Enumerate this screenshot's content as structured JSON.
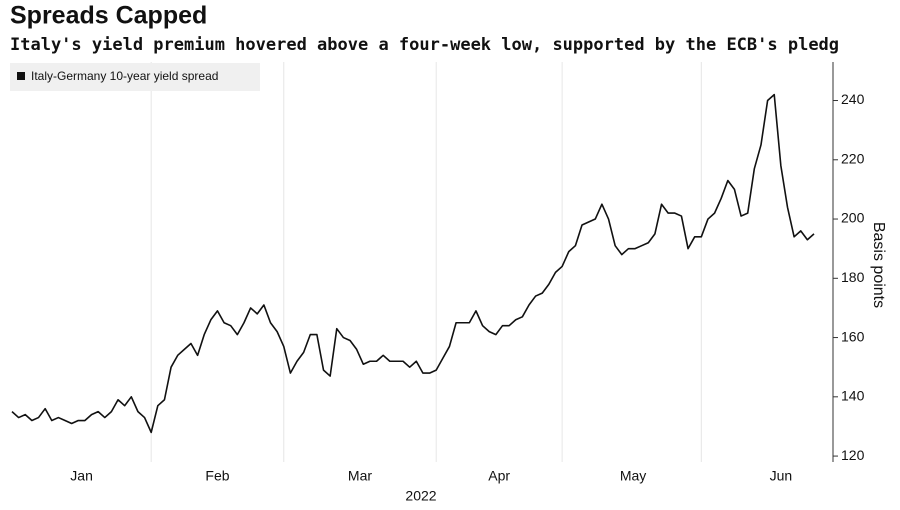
{
  "chart_data": {
    "type": "line",
    "title": "Spreads Capped",
    "subtitle": "Italy's yield premium hovered above a four-week low, supported by the ECB's pledg",
    "y_label": "Basis points",
    "x_label": "2022",
    "series": [
      {
        "name": "Italy-Germany 10-year yield spread",
        "color": "#111111",
        "values": [
          135,
          133,
          134,
          132,
          133,
          136,
          132,
          133,
          132,
          131,
          132,
          132,
          134,
          135,
          133,
          135,
          139,
          137,
          140,
          135,
          133,
          128,
          137,
          139,
          150,
          154,
          156,
          158,
          154,
          161,
          166,
          169,
          165,
          164,
          161,
          165,
          170,
          168,
          171,
          165,
          162,
          157,
          148,
          152,
          155,
          161,
          161,
          149,
          147,
          163,
          160,
          159,
          156,
          151,
          152,
          152,
          154,
          152,
          152,
          152,
          150,
          152,
          148,
          148,
          149,
          153,
          157,
          165,
          165,
          165,
          169,
          164,
          162,
          161,
          164,
          164,
          166,
          167,
          171,
          174,
          175,
          178,
          182,
          184,
          189,
          191,
          198,
          199,
          200,
          205,
          200,
          191,
          188,
          190,
          190,
          191,
          192,
          195,
          205,
          202,
          202,
          201,
          190,
          194,
          194,
          200,
          202,
          207,
          213,
          210,
          201,
          202,
          217,
          225,
          240,
          242,
          218,
          204,
          194,
          196,
          193,
          195
        ]
      }
    ],
    "xlim": [
      0,
      121
    ],
    "xticks": [
      {
        "value": 10.5,
        "label": "Jan"
      },
      {
        "value": 31,
        "label": "Feb"
      },
      {
        "value": 52.5,
        "label": "Mar"
      },
      {
        "value": 73.5,
        "label": "Apr"
      },
      {
        "value": 93.7,
        "label": "May"
      },
      {
        "value": 116,
        "label": "Jun"
      }
    ],
    "xgrid": [
      21,
      41,
      64,
      83,
      104
    ],
    "ylim": [
      118,
      253
    ],
    "yticks": [
      120,
      140,
      160,
      180,
      200,
      220,
      240
    ],
    "axis_side": "right",
    "legend": "top-left"
  }
}
